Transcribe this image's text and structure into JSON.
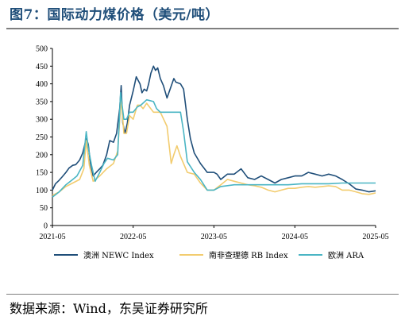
{
  "header": {
    "title": "图7：国际动力煤价格（美元/吨）"
  },
  "footer": {
    "source": "数据来源：Wind，东吴证券研究所"
  },
  "chart_data": {
    "type": "line",
    "title": "图7：国际动力煤价格（美元/吨）",
    "xlabel": "",
    "ylabel": "",
    "ylim": [
      0,
      500
    ],
    "yticks": [
      0,
      50,
      100,
      150,
      200,
      250,
      300,
      350,
      400,
      450,
      500
    ],
    "xlim": [
      "2021-05",
      "2025-05"
    ],
    "xticks": [
      "2021-05",
      "2022-05",
      "2023-05",
      "2024-05",
      "2025-05"
    ],
    "grid": false,
    "legend_position": "bottom",
    "series": [
      {
        "name": "澳洲 NEWC Index",
        "color": "#1f4e79",
        "points": [
          [
            "2021-05-01",
            100
          ],
          [
            "2021-05-15",
            118
          ],
          [
            "2021-06-01",
            128
          ],
          [
            "2021-06-15",
            138
          ],
          [
            "2021-07-01",
            150
          ],
          [
            "2021-07-15",
            162
          ],
          [
            "2021-08-01",
            170
          ],
          [
            "2021-08-15",
            172
          ],
          [
            "2021-09-01",
            185
          ],
          [
            "2021-09-15",
            205
          ],
          [
            "2021-10-01",
            245
          ],
          [
            "2021-10-10",
            230
          ],
          [
            "2021-10-20",
            175
          ],
          [
            "2021-11-01",
            140
          ],
          [
            "2021-11-15",
            150
          ],
          [
            "2021-12-01",
            160
          ],
          [
            "2021-12-15",
            170
          ],
          [
            "2022-01-01",
            200
          ],
          [
            "2022-01-15",
            240
          ],
          [
            "2022-02-01",
            235
          ],
          [
            "2022-02-15",
            260
          ],
          [
            "2022-03-01",
            330
          ],
          [
            "2022-03-08",
            395
          ],
          [
            "2022-03-15",
            290
          ],
          [
            "2022-03-25",
            260
          ],
          [
            "2022-04-05",
            290
          ],
          [
            "2022-04-15",
            340
          ],
          [
            "2022-05-01",
            380
          ],
          [
            "2022-05-15",
            420
          ],
          [
            "2022-06-01",
            400
          ],
          [
            "2022-06-10",
            375
          ],
          [
            "2022-06-20",
            385
          ],
          [
            "2022-07-01",
            380
          ],
          [
            "2022-07-10",
            400
          ],
          [
            "2022-07-20",
            430
          ],
          [
            "2022-08-01",
            450
          ],
          [
            "2022-08-10",
            438
          ],
          [
            "2022-08-20",
            445
          ],
          [
            "2022-09-01",
            415
          ],
          [
            "2022-09-15",
            395
          ],
          [
            "2022-10-01",
            360
          ],
          [
            "2022-10-15",
            385
          ],
          [
            "2022-11-01",
            415
          ],
          [
            "2022-11-10",
            405
          ],
          [
            "2022-12-01",
            400
          ],
          [
            "2022-12-15",
            385
          ],
          [
            "2023-01-01",
            300
          ],
          [
            "2023-01-15",
            245
          ],
          [
            "2023-02-01",
            205
          ],
          [
            "2023-03-01",
            175
          ],
          [
            "2023-04-01",
            150
          ],
          [
            "2023-05-01",
            150
          ],
          [
            "2023-05-15",
            145
          ],
          [
            "2023-06-01",
            130
          ],
          [
            "2023-07-01",
            145
          ],
          [
            "2023-08-01",
            145
          ],
          [
            "2023-09-01",
            160
          ],
          [
            "2023-10-01",
            135
          ],
          [
            "2023-11-01",
            130
          ],
          [
            "2023-12-01",
            140
          ],
          [
            "2024-01-01",
            130
          ],
          [
            "2024-02-01",
            120
          ],
          [
            "2024-03-01",
            130
          ],
          [
            "2024-04-01",
            135
          ],
          [
            "2024-05-01",
            140
          ],
          [
            "2024-06-01",
            140
          ],
          [
            "2024-07-01",
            150
          ],
          [
            "2024-08-01",
            145
          ],
          [
            "2024-09-01",
            140
          ],
          [
            "2024-10-01",
            145
          ],
          [
            "2024-11-01",
            140
          ],
          [
            "2024-12-01",
            130
          ],
          [
            "2025-01-01",
            118
          ],
          [
            "2025-02-01",
            103
          ],
          [
            "2025-03-01",
            100
          ],
          [
            "2025-04-01",
            95
          ],
          [
            "2025-05-01",
            98
          ]
        ]
      },
      {
        "name": "南非查理德 RB Index",
        "color": "#f2cc6f",
        "points": [
          [
            "2021-05-01",
            85
          ],
          [
            "2021-06-01",
            95
          ],
          [
            "2021-07-01",
            110
          ],
          [
            "2021-08-01",
            120
          ],
          [
            "2021-09-01",
            130
          ],
          [
            "2021-09-20",
            160
          ],
          [
            "2021-10-01",
            240
          ],
          [
            "2021-10-15",
            170
          ],
          [
            "2021-11-01",
            125
          ],
          [
            "2021-12-01",
            140
          ],
          [
            "2022-01-01",
            160
          ],
          [
            "2022-02-01",
            175
          ],
          [
            "2022-02-20",
            210
          ],
          [
            "2022-03-08",
            360
          ],
          [
            "2022-03-20",
            260
          ],
          [
            "2022-04-01",
            260
          ],
          [
            "2022-04-15",
            310
          ],
          [
            "2022-05-01",
            300
          ],
          [
            "2022-05-20",
            340
          ],
          [
            "2022-06-01",
            340
          ],
          [
            "2022-06-15",
            330
          ],
          [
            "2022-07-01",
            345
          ],
          [
            "2022-08-01",
            320
          ],
          [
            "2022-09-01",
            320
          ],
          [
            "2022-10-01",
            280
          ],
          [
            "2022-10-20",
            175
          ],
          [
            "2022-11-01",
            200
          ],
          [
            "2022-11-15",
            225
          ],
          [
            "2022-12-01",
            195
          ],
          [
            "2023-01-01",
            150
          ],
          [
            "2023-02-01",
            145
          ],
          [
            "2023-03-01",
            120
          ],
          [
            "2023-04-01",
            100
          ],
          [
            "2023-05-01",
            100
          ],
          [
            "2023-06-01",
            115
          ],
          [
            "2023-07-01",
            130
          ],
          [
            "2023-08-01",
            125
          ],
          [
            "2023-09-01",
            120
          ],
          [
            "2023-10-01",
            115
          ],
          [
            "2023-11-01",
            112
          ],
          [
            "2023-12-01",
            108
          ],
          [
            "2024-01-01",
            100
          ],
          [
            "2024-02-01",
            95
          ],
          [
            "2024-03-01",
            100
          ],
          [
            "2024-04-01",
            105
          ],
          [
            "2024-05-01",
            105
          ],
          [
            "2024-06-01",
            108
          ],
          [
            "2024-07-01",
            110
          ],
          [
            "2024-08-01",
            108
          ],
          [
            "2024-09-01",
            110
          ],
          [
            "2024-10-01",
            112
          ],
          [
            "2024-11-01",
            110
          ],
          [
            "2024-12-01",
            100
          ],
          [
            "2025-01-01",
            100
          ],
          [
            "2025-02-01",
            95
          ],
          [
            "2025-03-01",
            90
          ],
          [
            "2025-04-01",
            88
          ],
          [
            "2025-05-01",
            92
          ]
        ]
      },
      {
        "name": "欧洲 ARA",
        "color": "#4ab5c4",
        "points": [
          [
            "2021-05-01",
            80
          ],
          [
            "2021-06-01",
            95
          ],
          [
            "2021-07-01",
            115
          ],
          [
            "2021-08-01",
            130
          ],
          [
            "2021-08-20",
            140
          ],
          [
            "2021-09-15",
            170
          ],
          [
            "2021-10-01",
            265
          ],
          [
            "2021-10-10",
            220
          ],
          [
            "2021-10-25",
            170
          ],
          [
            "2021-11-10",
            125
          ],
          [
            "2021-12-01",
            150
          ],
          [
            "2021-12-20",
            175
          ],
          [
            "2022-01-05",
            190
          ],
          [
            "2022-02-01",
            185
          ],
          [
            "2022-02-20",
            200
          ],
          [
            "2022-03-05",
            375
          ],
          [
            "2022-03-20",
            300
          ],
          [
            "2022-04-01",
            300
          ],
          [
            "2022-04-15",
            320
          ],
          [
            "2022-05-01",
            320
          ],
          [
            "2022-05-20",
            335
          ],
          [
            "2022-06-05",
            340
          ],
          [
            "2022-07-01",
            355
          ],
          [
            "2022-08-01",
            350
          ],
          [
            "2022-08-15",
            330
          ],
          [
            "2022-09-01",
            320
          ],
          [
            "2022-10-01",
            320
          ],
          [
            "2022-11-01",
            320
          ],
          [
            "2022-12-01",
            320
          ],
          [
            "2022-12-15",
            265
          ],
          [
            "2023-01-01",
            180
          ],
          [
            "2023-02-01",
            150
          ],
          [
            "2023-03-01",
            130
          ],
          [
            "2023-04-01",
            100
          ],
          [
            "2023-05-01",
            100
          ],
          [
            "2023-06-01",
            110
          ],
          [
            "2023-08-01",
            115
          ],
          [
            "2023-10-01",
            115
          ],
          [
            "2023-12-01",
            115
          ],
          [
            "2024-02-01",
            115
          ],
          [
            "2024-04-01",
            115
          ],
          [
            "2024-06-01",
            118
          ],
          [
            "2024-08-01",
            118
          ],
          [
            "2024-10-01",
            118
          ],
          [
            "2024-12-01",
            120
          ],
          [
            "2025-02-01",
            120
          ],
          [
            "2025-05-01",
            120
          ]
        ]
      }
    ]
  }
}
